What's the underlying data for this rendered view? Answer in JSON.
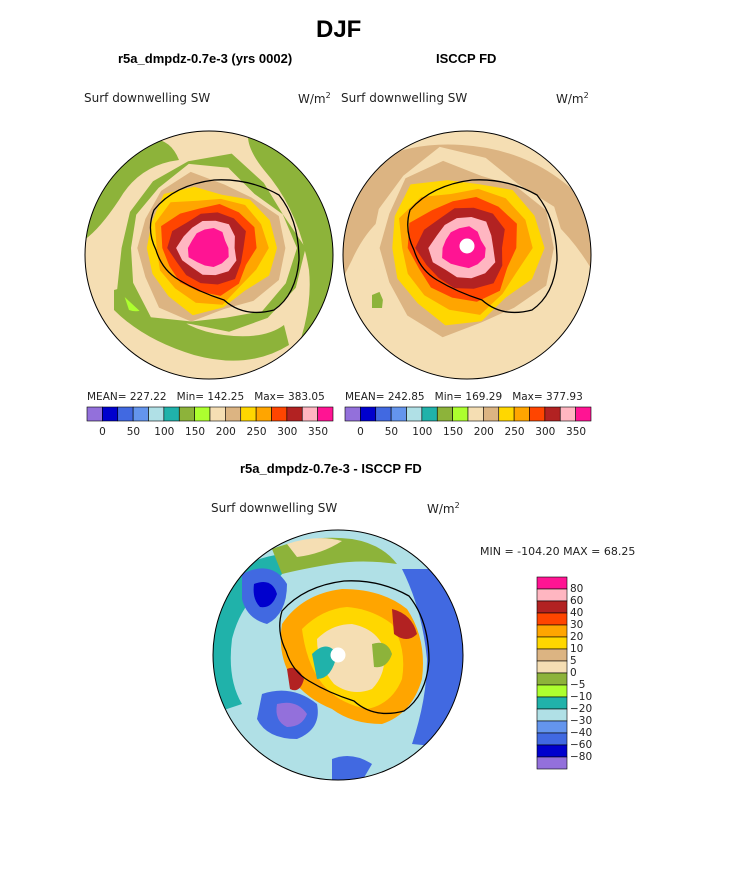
{
  "figure": {
    "title": "DJF"
  },
  "chart_data": [
    {
      "type": "heatmap",
      "projection": "polar-stereographic south",
      "title": "r5a_dmpdz-0.7e-3 (yrs 0002)",
      "left_label": "Surf downwelling SW",
      "units_base": "W/m",
      "units_exp": "2",
      "stats": {
        "mean": "227.22",
        "min": "142.25",
        "max": "383.05"
      },
      "stats_labels": {
        "mean": "MEAN=",
        "min": "Min=",
        "max": "Max="
      },
      "contour_levels": [
        0,
        25,
        50,
        75,
        100,
        125,
        150,
        175,
        200,
        225,
        250,
        275,
        300,
        325,
        350
      ],
      "colorbar_ticks": [
        "0",
        "50",
        "100",
        "150",
        "200",
        "250",
        "300",
        "350"
      ],
      "field_rings": [
        {
          "level": 175,
          "color": "#8db33a"
        },
        {
          "level": 200,
          "color": "#f5deb3"
        },
        {
          "level": 225,
          "color": "#dcb482"
        },
        {
          "level": 250,
          "color": "#ffd700"
        },
        {
          "level": 275,
          "color": "#ffa500"
        },
        {
          "level": 300,
          "color": "#ff4500"
        },
        {
          "level": 325,
          "color": "#b22222"
        },
        {
          "level": 350,
          "color": "#ffb6c1"
        },
        {
          "level": 375,
          "color": "#ff1493"
        }
      ]
    },
    {
      "type": "heatmap",
      "projection": "polar-stereographic south",
      "title": "ISCCP FD",
      "left_label": "Surf downwelling SW",
      "units_base": "W/m",
      "units_exp": "2",
      "stats": {
        "mean": "242.85",
        "min": "169.29",
        "max": "377.93"
      },
      "stats_labels": {
        "mean": "MEAN=",
        "min": "Min=",
        "max": "Max="
      },
      "contour_levels": [
        0,
        25,
        50,
        75,
        100,
        125,
        150,
        175,
        200,
        225,
        250,
        275,
        300,
        325,
        350
      ],
      "colorbar_ticks": [
        "0",
        "50",
        "100",
        "150",
        "200",
        "250",
        "300",
        "350"
      ],
      "field_rings": [
        {
          "level": 200,
          "color": "#f5deb3"
        },
        {
          "level": 225,
          "color": "#dcb482"
        },
        {
          "level": 250,
          "color": "#ffd700"
        },
        {
          "level": 275,
          "color": "#ffa500"
        },
        {
          "level": 300,
          "color": "#ff4500"
        },
        {
          "level": 325,
          "color": "#b22222"
        },
        {
          "level": 350,
          "color": "#ffb6c1"
        },
        {
          "level": 375,
          "color": "#ff1493"
        }
      ]
    },
    {
      "type": "heatmap",
      "projection": "polar-stereographic south",
      "title": "r5a_dmpdz-0.7e-3 - ISCCP FD",
      "left_label": "Surf downwelling SW",
      "units_base": "W/m",
      "units_exp": "2",
      "range_text": "MIN = -104.20 MAX =  68.25",
      "contour_levels": [
        -80,
        -60,
        -40,
        -30,
        -20,
        -10,
        -5,
        0,
        5,
        10,
        20,
        30,
        40,
        60,
        80
      ],
      "colorbar_ticks": [
        "80",
        "60",
        "40",
        "30",
        "20",
        "10",
        "5",
        "0",
        "−5",
        "−10",
        "−20",
        "−30",
        "−40",
        "−60",
        "−80"
      ]
    }
  ],
  "palette": {
    "sequential": [
      "#9370db",
      "#0000cd",
      "#4169e1",
      "#6495ed",
      "#b0e0e6",
      "#20b2aa",
      "#8db33a",
      "#adff2f",
      "#f5deb3",
      "#dcb482",
      "#ffd700",
      "#ffa500",
      "#ff4500",
      "#b22222",
      "#ffb6c1",
      "#ff1493"
    ],
    "difference_top_to_bottom": [
      "#ff1493",
      "#ffb6c1",
      "#b22222",
      "#ff4500",
      "#ffa500",
      "#ffd700",
      "#dcb482",
      "#f5deb3",
      "#8db33a",
      "#adff2f",
      "#20b2aa",
      "#b0e0e6",
      "#6495ed",
      "#4169e1",
      "#0000cd",
      "#9370db"
    ]
  }
}
